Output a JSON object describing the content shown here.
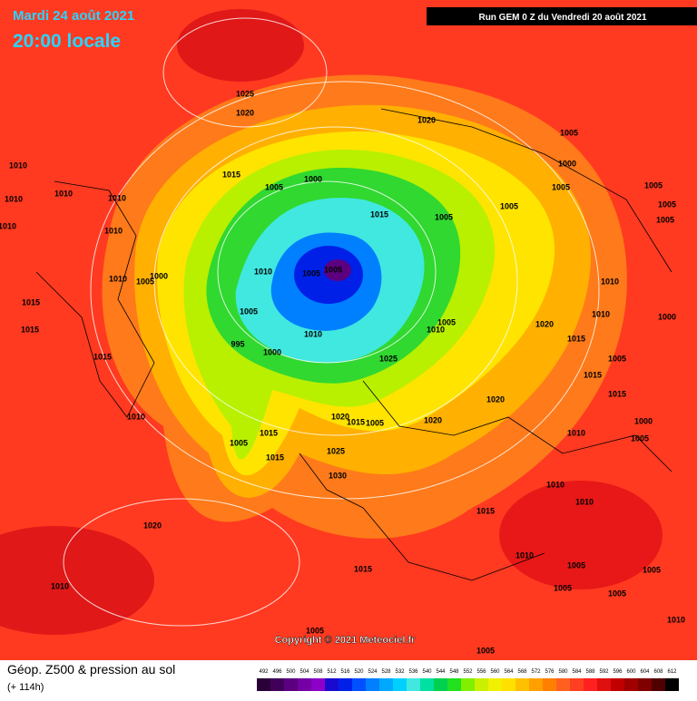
{
  "header": {
    "date": "Mardi 24 août 2021",
    "time": "20:00 locale",
    "run": "Run GEM 0 Z du Vendredi 20 août 2021"
  },
  "footer": {
    "title": "Géop. Z500 & pression au sol",
    "lead": "(+ 114h)",
    "copyright": "Copyright © 2021 Meteociel.fr"
  },
  "colorbar": {
    "values": [
      492,
      496,
      500,
      504,
      508,
      512,
      516,
      520,
      524,
      528,
      532,
      536,
      540,
      544,
      548,
      552,
      556,
      560,
      564,
      568,
      572,
      576,
      580,
      584,
      588,
      592,
      596,
      600,
      604,
      608,
      612
    ],
    "colors": [
      "#2a0038",
      "#40005a",
      "#5c0080",
      "#7400a6",
      "#8c00c8",
      "#1a0ad0",
      "#0020e8",
      "#0050ff",
      "#0080ff",
      "#00a8ff",
      "#00d0ff",
      "#40e8e0",
      "#00e0a0",
      "#00d050",
      "#20e020",
      "#80f000",
      "#c8f000",
      "#f0f000",
      "#ffe000",
      "#ffc000",
      "#ffa000",
      "#ff8000",
      "#ff6020",
      "#ff4020",
      "#ff2020",
      "#e01010",
      "#c00000",
      "#a00000",
      "#800000",
      "#500000",
      "#000000"
    ]
  },
  "isobar_labels": [
    1025,
    1020,
    1020,
    1005,
    1010,
    1015,
    1005,
    1000,
    1000,
    1005,
    1010,
    1010,
    1010,
    1015,
    1005,
    1005,
    1005,
    1005,
    1005,
    1010,
    1010,
    1010,
    1005,
    1000,
    1010,
    1005,
    1005,
    1010,
    1015,
    1015,
    1005,
    995,
    1000,
    1010,
    1010,
    1005,
    1020,
    1010,
    1015,
    1005,
    1015,
    1015,
    1025,
    1015,
    1020,
    1010,
    1020,
    1015,
    1005,
    1020,
    1000,
    1010,
    1005,
    1005,
    1015,
    1025,
    1015,
    1030,
    1010,
    1010,
    1015,
    1020,
    1015,
    1010,
    1005,
    1005,
    1005,
    1005,
    1010,
    1010,
    1005,
    1005,
    1000
  ]
}
